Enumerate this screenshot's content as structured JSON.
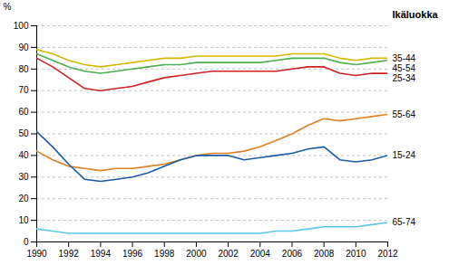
{
  "chart_data": {
    "type": "line",
    "x": [
      1990,
      1991,
      1992,
      1993,
      1994,
      1995,
      1996,
      1997,
      1998,
      1999,
      2000,
      2001,
      2002,
      2003,
      2004,
      2005,
      2006,
      2007,
      2008,
      2009,
      2010,
      2011,
      2012
    ],
    "series": [
      {
        "name": "35-44",
        "color": "#d4b800",
        "values": [
          89,
          87,
          84,
          82,
          81,
          82,
          83,
          84,
          85,
          85,
          86,
          86,
          86,
          86,
          86,
          86,
          87,
          87,
          87,
          85,
          84,
          85,
          85
        ]
      },
      {
        "name": "45-54",
        "color": "#4caf50",
        "values": [
          87,
          84,
          81,
          79,
          78,
          79,
          80,
          81,
          82,
          82,
          83,
          83,
          83,
          83,
          83,
          84,
          85,
          85,
          85,
          83,
          82,
          83,
          84
        ]
      },
      {
        "name": "25-34",
        "color": "#cc2222",
        "values": [
          85,
          81,
          76,
          71,
          70,
          71,
          72,
          74,
          76,
          77,
          78,
          79,
          79,
          79,
          79,
          79,
          80,
          81,
          81,
          78,
          77,
          78,
          78
        ]
      },
      {
        "name": "55-64",
        "color": "#e08020",
        "values": [
          42,
          38,
          35,
          34,
          33,
          34,
          34,
          35,
          36,
          38,
          40,
          41,
          41,
          42,
          44,
          47,
          50,
          54,
          57,
          56,
          57,
          58,
          59
        ]
      },
      {
        "name": "15-24",
        "color": "#1a5ba6",
        "values": [
          51,
          44,
          36,
          29,
          28,
          29,
          30,
          32,
          35,
          38,
          40,
          40,
          40,
          38,
          39,
          40,
          41,
          43,
          44,
          38,
          37,
          38,
          40
        ]
      },
      {
        "name": "65-74",
        "color": "#5bc8e8",
        "values": [
          6,
          5,
          4,
          4,
          4,
          4,
          4,
          4,
          4,
          4,
          4,
          4,
          4,
          4,
          4,
          5,
          5,
          6,
          7,
          7,
          7,
          8,
          9
        ]
      }
    ],
    "ylabel": "%",
    "legend_title": "Ikäluokka",
    "xlim": [
      1990,
      2012
    ],
    "xticks": [
      1990,
      1992,
      1994,
      1996,
      1998,
      2000,
      2002,
      2004,
      2006,
      2008,
      2010,
      2012
    ],
    "ylim": [
      0,
      100
    ],
    "yticks": [
      0,
      10,
      20,
      30,
      40,
      50,
      60,
      70,
      80,
      90,
      100
    ],
    "grid": true
  }
}
